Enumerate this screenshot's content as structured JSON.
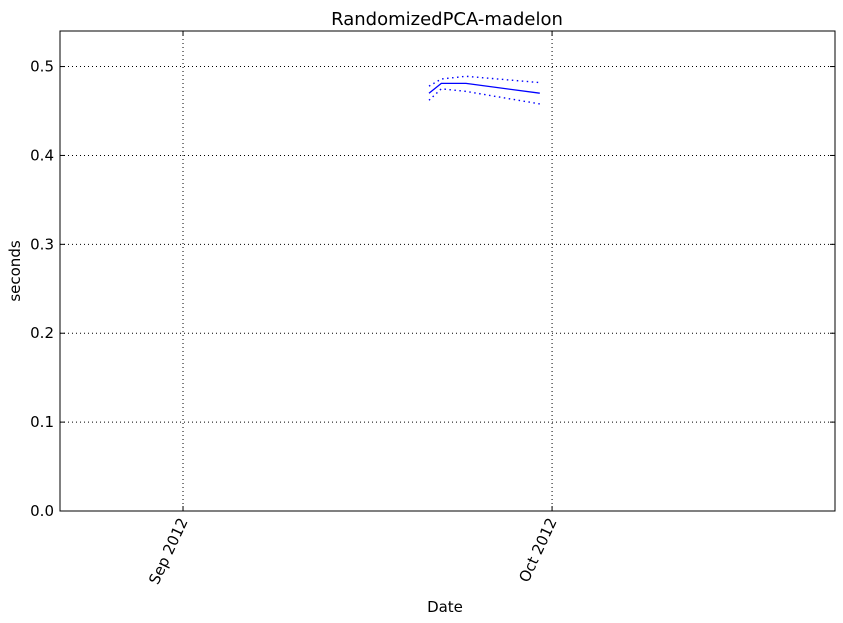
{
  "chart_data": {
    "type": "line",
    "title": "RandomizedPCA-madelon",
    "xlabel": "Date",
    "ylabel": "seconds",
    "xlim": [
      "2012-08-22",
      "2012-10-24"
    ],
    "ylim": [
      0.0,
      0.54
    ],
    "x_ticks": [
      {
        "date": "2012-09-01",
        "label": "Sep 2012"
      },
      {
        "date": "2012-10-01",
        "label": "Oct 2012"
      }
    ],
    "y_ticks": [
      {
        "value": 0.0,
        "label": "0.0"
      },
      {
        "value": 0.1,
        "label": "0.1"
      },
      {
        "value": 0.2,
        "label": "0.2"
      },
      {
        "value": 0.3,
        "label": "0.3"
      },
      {
        "value": 0.4,
        "label": "0.4"
      },
      {
        "value": 0.5,
        "label": "0.5"
      }
    ],
    "grid": true,
    "series": [
      {
        "role": "mean",
        "style": "solid",
        "color": "#0000ff",
        "x": [
          "2012-09-21",
          "2012-09-22",
          "2012-09-24",
          "2012-09-30"
        ],
        "values": [
          0.47,
          0.481,
          0.481,
          0.47
        ]
      },
      {
        "role": "upper",
        "style": "dotted",
        "color": "#0000ff",
        "x": [
          "2012-09-21",
          "2012-09-22",
          "2012-09-24",
          "2012-09-30"
        ],
        "values": [
          0.478,
          0.486,
          0.489,
          0.482
        ]
      },
      {
        "role": "lower",
        "style": "dotted",
        "color": "#0000ff",
        "x": [
          "2012-09-21",
          "2012-09-22",
          "2012-09-24",
          "2012-09-30"
        ],
        "values": [
          0.462,
          0.475,
          0.472,
          0.458
        ]
      }
    ]
  }
}
